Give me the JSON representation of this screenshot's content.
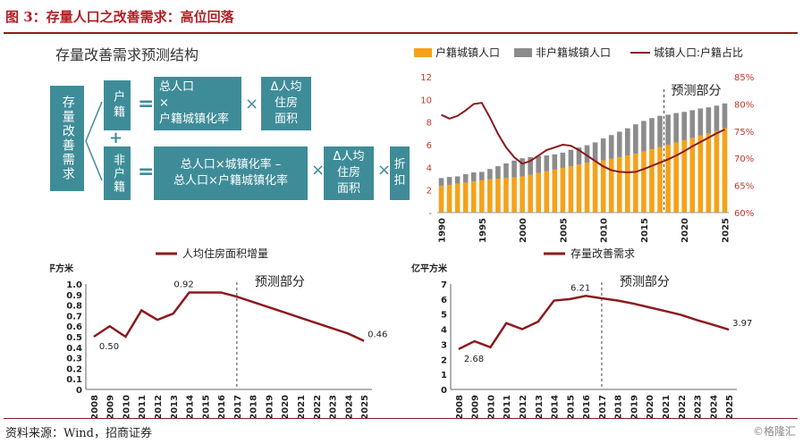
{
  "header": {
    "title": "图 3：存量人口之改善需求：高位回落"
  },
  "footer": {
    "source": "资料来源：Wind，招商证券",
    "watermark": "©格隆汇"
  },
  "diagram": {
    "title": "存量改善需求预测结构",
    "root": "存量改善需求",
    "hukou": "户籍",
    "nonhukou": "非户籍",
    "plus": "+",
    "eq": "=",
    "times": "×",
    "hukou_formula": [
      "总人口",
      "×",
      "户籍城镇化率"
    ],
    "nonhukou_formula": [
      "总人口×城镇化率 –",
      "总人口×户籍城镇化率"
    ],
    "area1": [
      "Δ人均",
      "住房",
      "面积"
    ],
    "area2": [
      "Δ人均",
      "住房",
      "面积"
    ],
    "discount": [
      "折",
      "扣"
    ]
  },
  "chart_data": [
    {
      "type": "bar",
      "legend": [
        "户籍城镇人口",
        "非户籍城镇人口",
        "城镇人口:户籍占比"
      ],
      "colors": {
        "hukou": "#f5a21a",
        "nonhukou": "#8c8c8c",
        "ratio": "#8b1a1e"
      },
      "x_start": 1990,
      "x_end": 2025,
      "xticks": [
        "1990",
        "1995",
        "2000",
        "2005",
        "2010",
        "2015",
        "2020",
        "2025"
      ],
      "yticks_left": [
        "-",
        "2",
        "4",
        "6",
        "8",
        "10",
        "12"
      ],
      "yticks_right": [
        "60%",
        "65%",
        "70%",
        "75%",
        "80%",
        "85%"
      ],
      "ylim_left": [
        0,
        12
      ],
      "ylim_right": [
        60,
        85
      ],
      "annotation": "预测部分",
      "forecast_from": 2017.5,
      "series": [
        {
          "name": "户籍城镇人口",
          "values": [
            2.35,
            2.45,
            2.55,
            2.65,
            2.75,
            2.85,
            2.95,
            3.0,
            3.05,
            3.1,
            3.2,
            3.35,
            3.5,
            3.65,
            3.8,
            3.95,
            4.1,
            4.25,
            4.4,
            4.55,
            4.6,
            4.75,
            4.9,
            5.05,
            5.2,
            5.4,
            5.6,
            5.8,
            6.0,
            6.2,
            6.4,
            6.6,
            6.8,
            7.0,
            7.2,
            7.45
          ]
        },
        {
          "name": "非户籍城镇人口",
          "values": [
            0.7,
            0.7,
            0.65,
            0.75,
            0.8,
            0.75,
            0.9,
            1.1,
            1.3,
            1.5,
            1.6,
            1.55,
            1.5,
            1.4,
            1.35,
            1.35,
            1.45,
            1.5,
            1.55,
            1.65,
            1.95,
            2.1,
            2.25,
            2.4,
            2.6,
            2.7,
            2.75,
            2.75,
            2.65,
            2.6,
            2.5,
            2.45,
            2.4,
            2.3,
            2.25,
            2.2
          ]
        },
        {
          "name": "城镇人口:户籍占比",
          "values": [
            78.0,
            77.3,
            77.8,
            78.8,
            80.0,
            80.2,
            77.5,
            74.5,
            72.0,
            70.2,
            69.0,
            69.5,
            70.5,
            71.5,
            72.0,
            72.5,
            72.3,
            71.5,
            70.5,
            69.5,
            68.5,
            67.8,
            67.5,
            67.4,
            67.5,
            68.0,
            68.6,
            69.2,
            69.8,
            70.5,
            71.3,
            72.2,
            73.0,
            73.8,
            74.6,
            75.3
          ]
        }
      ]
    },
    {
      "type": "line",
      "legend": "人均住房面积增量",
      "unit": "平方米",
      "color": "#8b1a1e",
      "x": [
        "2008",
        "2009",
        "2010",
        "2011",
        "2012",
        "2013",
        "2014",
        "2015",
        "2016",
        "2017",
        "2018",
        "2019",
        "2020",
        "2021",
        "2022",
        "2023",
        "2024",
        "2025"
      ],
      "values": [
        0.5,
        0.6,
        0.5,
        0.75,
        0.66,
        0.72,
        0.92,
        0.92,
        0.92,
        0.88,
        0.83,
        0.78,
        0.73,
        0.68,
        0.63,
        0.58,
        0.53,
        0.46
      ],
      "yticks": [
        "0",
        "0.1",
        "0.2",
        "0.3",
        "0.4",
        "0.5",
        "0.6",
        "0.7",
        "0.8",
        "0.9",
        "1.0"
      ],
      "ylim": [
        0,
        1.0
      ],
      "labels": {
        "first": "0.50",
        "peak": "0.92",
        "last": "0.46"
      },
      "annotation": "预测部分",
      "forecast_from": 2017
    },
    {
      "type": "line",
      "legend": "存量改善需求",
      "unit": "亿平方米",
      "color": "#8b1a1e",
      "x": [
        "2008",
        "2009",
        "2010",
        "2011",
        "2012",
        "2013",
        "2014",
        "2015",
        "2016",
        "2017",
        "2018",
        "2019",
        "2020",
        "2021",
        "2022",
        "2023",
        "2024",
        "2025"
      ],
      "values": [
        2.68,
        3.2,
        2.8,
        4.4,
        4.0,
        4.5,
        5.9,
        6.0,
        6.21,
        6.05,
        5.9,
        5.7,
        5.45,
        5.2,
        4.95,
        4.6,
        4.3,
        3.97
      ],
      "yticks": [
        "0",
        "1",
        "2",
        "3",
        "4",
        "5",
        "6",
        "7"
      ],
      "ylim": [
        0,
        7
      ],
      "labels": {
        "first": "2.68",
        "peak": "6.21",
        "last": "3.97"
      },
      "annotation": "预测部分",
      "forecast_from": 2017
    }
  ]
}
